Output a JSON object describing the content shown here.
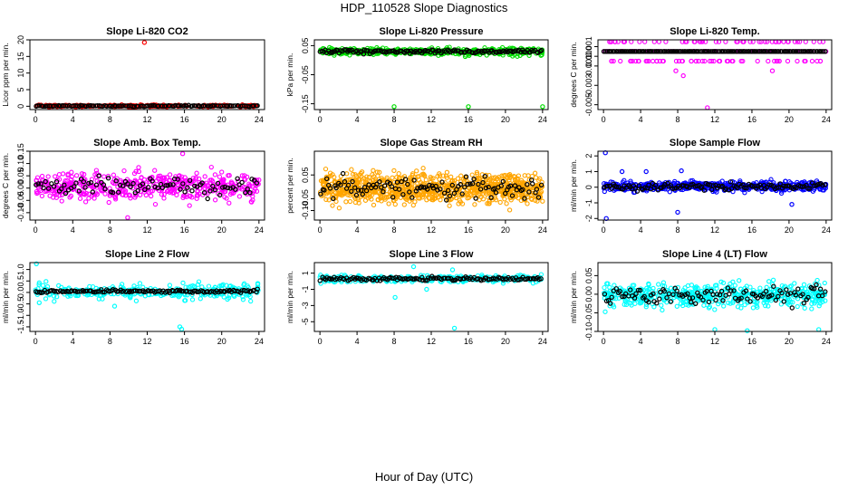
{
  "figure": {
    "title": "HDP_110528  Slope Diagnostics",
    "xlabel": "Hour of Day (UTC)",
    "xticks": [
      0,
      4,
      8,
      12,
      16,
      20,
      24
    ]
  },
  "chart_data": [
    {
      "type": "scatter",
      "title": "Slope Li-820 CO2",
      "ylabel": "Licor ppm per min.",
      "ylim": [
        -1,
        20
      ],
      "yticks": [
        0,
        5,
        10,
        15,
        20
      ],
      "ytick_labels": [
        "0",
        "5",
        "10",
        "15",
        "20"
      ],
      "fg_color": "#ff0000",
      "center": 0.1,
      "spread": 0.28,
      "black_spread": 0.15,
      "n_color": 220,
      "n_black": 120,
      "outliers": [
        {
          "x": 11.7,
          "y": 19.2
        }
      ]
    },
    {
      "type": "scatter",
      "title": "Slope Li-820 Pressure",
      "ylabel": "kPa per min.",
      "ylim": [
        -0.17,
        0.07
      ],
      "yticks": [
        0.05,
        -0.05,
        -0.15
      ],
      "ytick_labels": [
        "0.05",
        "-0.05",
        "-0.15"
      ],
      "fg_color": "#00dd00",
      "center": 0.03,
      "spread": 0.01,
      "black_spread": 0.006,
      "n_color": 500,
      "n_black": 140,
      "outliers": [
        {
          "x": 8.0,
          "y": -0.16
        },
        {
          "x": 16.0,
          "y": -0.16
        },
        {
          "x": 24.0,
          "y": -0.16
        }
      ]
    },
    {
      "type": "scatter",
      "title": "Slope Li-820 Temp.",
      "ylabel": "degrees C per min.",
      "ylim": [
        -0.0055,
        0.0017
      ],
      "yticks": [
        0.001,
        0.0,
        -0.001,
        -0.003,
        -0.005
      ],
      "ytick_labels": [
        "0.001",
        "0.000",
        "-0.001",
        "-0.003",
        "-0.005"
      ],
      "fg_color": "#ff00ff",
      "discrete_levels": [
        0.0015,
        0.0005,
        -0.0005
      ],
      "center": 0.0005,
      "n_color": 180,
      "n_black": 150,
      "outliers": [
        {
          "x": 11.2,
          "y": -0.0053
        },
        {
          "x": 8.6,
          "y": -0.002
        },
        {
          "x": 7.8,
          "y": -0.0015
        },
        {
          "x": 18.2,
          "y": -0.0015
        }
      ]
    },
    {
      "type": "scatter",
      "title": "Slope Amb. Box Temp.",
      "ylabel": "degrees C per min.",
      "ylim": [
        -0.13,
        0.15
      ],
      "yticks": [
        0.15,
        0.1,
        0.05,
        0.0,
        -0.05,
        -0.1
      ],
      "ytick_labels": [
        "0.15",
        "0.10",
        "0.05",
        "0.00",
        "-0.05",
        "-0.10"
      ],
      "fg_color": "#ff00ff",
      "center": 0.005,
      "spread": 0.05,
      "black_spread": 0.035,
      "n_color": 480,
      "n_black": 90,
      "outliers": [
        {
          "x": 15.8,
          "y": 0.14
        },
        {
          "x": 9.9,
          "y": -0.12
        }
      ]
    },
    {
      "type": "scatter",
      "title": "Slope Gas Stream RH",
      "ylabel": "percent per min.",
      "ylim": [
        -0.14,
        0.15
      ],
      "yticks": [
        0.05,
        -0.05,
        -0.1
      ],
      "ytick_labels": [
        "0.05",
        "-0.05",
        "-0.10"
      ],
      "fg_color": "#ffa500",
      "center": -0.005,
      "spread": 0.055,
      "black_spread": 0.04,
      "n_color": 850,
      "n_black": 110,
      "outliers": []
    },
    {
      "type": "scatter",
      "title": "Slope Sample Flow",
      "ylabel": "ml/min per min.",
      "ylim": [
        -2.1,
        2.3
      ],
      "yticks": [
        2,
        1,
        0,
        -1,
        -2
      ],
      "ytick_labels": [
        "2",
        "1",
        "0",
        "-1",
        "-2"
      ],
      "fg_color": "#0000ff",
      "center": 0.05,
      "spread": 0.28,
      "black_spread": 0.2,
      "n_color": 480,
      "n_black": 120,
      "outliers": [
        {
          "x": 0.2,
          "y": 2.2
        },
        {
          "x": 0.3,
          "y": -2.0
        },
        {
          "x": 8.0,
          "y": -1.6
        },
        {
          "x": 2.0,
          "y": 1.0
        },
        {
          "x": 4.6,
          "y": 1.0
        },
        {
          "x": 8.4,
          "y": 1.05
        },
        {
          "x": 20.3,
          "y": -1.1
        }
      ]
    },
    {
      "type": "scatter",
      "title": "Slope Line 2 Flow",
      "ylabel": "ml/min per min.",
      "ylim": [
        -1.7,
        1.3
      ],
      "yticks": [
        1.0,
        0.5,
        0.0,
        -0.5,
        -1.0,
        -1.5
      ],
      "ytick_labels": [
        "1.0",
        "0.5",
        "0.0",
        "-0.5",
        "-1.0",
        "-1.5"
      ],
      "fg_color": "#00ffff",
      "center": 0.05,
      "spread": 0.28,
      "black_spread": 0.06,
      "n_color": 290,
      "n_black": 130,
      "outliers": [
        {
          "x": 0.1,
          "y": 1.25
        },
        {
          "x": 15.5,
          "y": -1.5
        },
        {
          "x": 15.7,
          "y": -1.6
        },
        {
          "x": 0.4,
          "y": -0.45
        },
        {
          "x": 8.5,
          "y": -0.6
        }
      ]
    },
    {
      "type": "scatter",
      "title": "Slope Line 3 Flow",
      "ylabel": "ml/min per min.",
      "ylim": [
        -6.2,
        2.3
      ],
      "yticks": [
        1,
        -1,
        -3,
        -5
      ],
      "ytick_labels": [
        "1",
        "-1",
        "-3",
        "-5"
      ],
      "fg_color": "#00ffff",
      "center": 0.3,
      "spread": 0.35,
      "black_spread": 0.2,
      "n_color": 290,
      "n_black": 130,
      "outliers": [
        {
          "x": 14.5,
          "y": -5.8
        },
        {
          "x": 8.1,
          "y": -2.0
        },
        {
          "x": 11.5,
          "y": -1.0
        },
        {
          "x": 10.1,
          "y": 1.8
        },
        {
          "x": 14.3,
          "y": 1.4
        }
      ]
    },
    {
      "type": "scatter",
      "title": "Slope Line 4 (LT) Flow",
      "ylabel": "ml/min per min.",
      "ylim": [
        -0.1,
        0.085
      ],
      "yticks": [
        0.05,
        0.0,
        -0.05,
        -0.1
      ],
      "ytick_labels": [
        "0.05",
        "0.00",
        "-0.05",
        "-0.10"
      ],
      "fg_color": "#00ffff",
      "center": -0.003,
      "spread": 0.028,
      "black_spread": 0.022,
      "n_color": 520,
      "n_black": 110,
      "outliers": [
        {
          "x": 12.0,
          "y": -0.095
        },
        {
          "x": 15.5,
          "y": -0.098
        },
        {
          "x": 23.2,
          "y": -0.095
        }
      ]
    }
  ]
}
